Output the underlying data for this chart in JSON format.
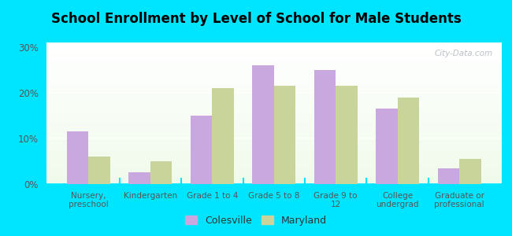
{
  "title": "School Enrollment by Level of School for Male Students",
  "categories": [
    "Nursery,\npreschool",
    "Kindergarten",
    "Grade 1 to 4",
    "Grade 5 to 8",
    "Grade 9 to\n12",
    "College\nundergrad",
    "Graduate or\nprofessional"
  ],
  "colesville": [
    11.5,
    2.5,
    15.0,
    26.0,
    25.0,
    16.5,
    3.5
  ],
  "maryland": [
    6.0,
    5.0,
    21.0,
    21.5,
    21.5,
    19.0,
    5.5
  ],
  "colesville_color": "#c9a8e0",
  "maryland_color": "#c8d49a",
  "background_color": "#00e5ff",
  "yticks": [
    0,
    10,
    20,
    30
  ],
  "ylim": [
    0,
    31
  ],
  "legend_colesville": "Colesville",
  "legend_maryland": "Maryland",
  "watermark": "City-Data.com",
  "title_fontsize": 12,
  "tick_fontsize": 8.5,
  "xtick_fontsize": 7.5
}
